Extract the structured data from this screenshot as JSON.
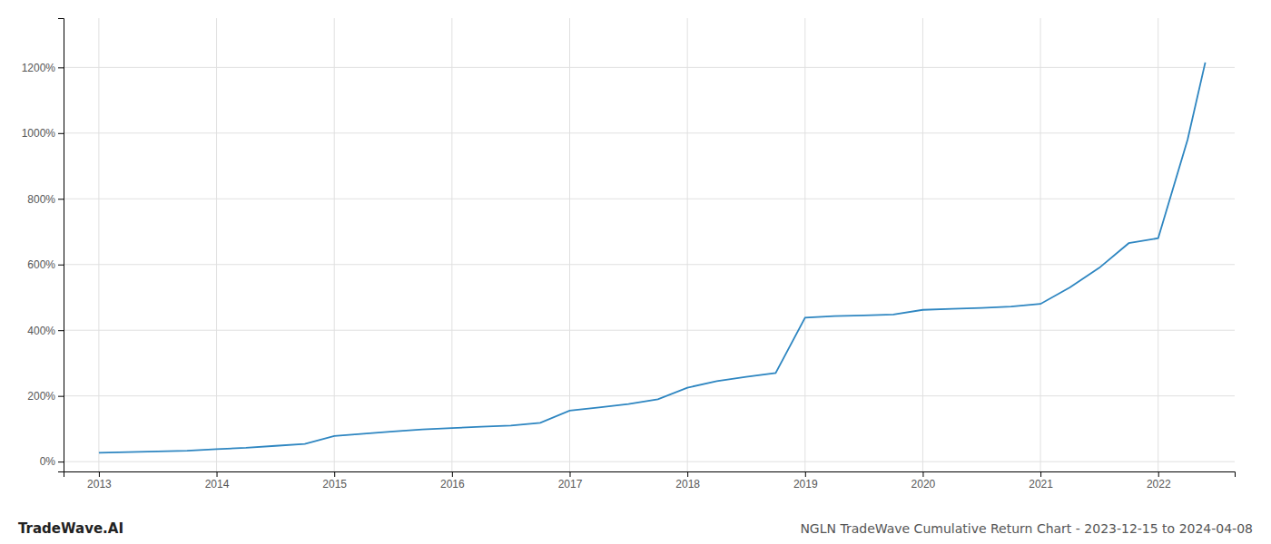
{
  "chart_data": {
    "type": "line",
    "title": "NGLN TradeWave Cumulative Return Chart - 2023-12-15 to 2024-04-08",
    "annotations": [
      "TradeWave.AI"
    ],
    "color": "#2e86c1",
    "grid": true,
    "x": [
      2013.0,
      2013.25,
      2013.5,
      2013.75,
      2014.0,
      2014.25,
      2014.5,
      2014.75,
      2015.0,
      2015.25,
      2015.5,
      2015.75,
      2016.0,
      2016.25,
      2016.5,
      2016.75,
      2017.0,
      2017.25,
      2017.5,
      2017.75,
      2018.0,
      2018.25,
      2018.5,
      2018.75,
      2019.0,
      2019.25,
      2019.5,
      2019.75,
      2020.0,
      2020.25,
      2020.5,
      2020.75,
      2021.0,
      2021.25,
      2021.5,
      2021.75,
      2022.0,
      2022.25,
      2022.4
    ],
    "values": [
      0.27,
      0.29,
      0.31,
      0.33,
      0.38,
      0.42,
      0.48,
      0.54,
      0.78,
      0.85,
      0.92,
      0.98,
      1.02,
      1.06,
      1.1,
      1.18,
      1.55,
      1.65,
      1.75,
      1.9,
      2.25,
      2.45,
      2.58,
      2.7,
      4.38,
      4.43,
      4.45,
      4.48,
      4.62,
      4.65,
      4.68,
      4.72,
      4.8,
      5.3,
      5.9,
      6.65,
      6.8,
      9.8,
      12.15
    ],
    "xlim": [
      2012.7,
      2022.65
    ],
    "xticks": [
      2013,
      2014,
      2015,
      2016,
      2017,
      2018,
      2019,
      2020,
      2021,
      2022
    ],
    "ylim": [
      -0.3,
      13.5
    ],
    "yticks": [
      {
        "value": 0,
        "label": "0%"
      },
      {
        "value": 2,
        "label": "200%"
      },
      {
        "value": 4,
        "label": "400%"
      },
      {
        "value": 6,
        "label": "600%"
      },
      {
        "value": 8,
        "label": "800%"
      },
      {
        "value": 10,
        "label": "1000%"
      },
      {
        "value": 12,
        "label": "1200%"
      }
    ]
  }
}
